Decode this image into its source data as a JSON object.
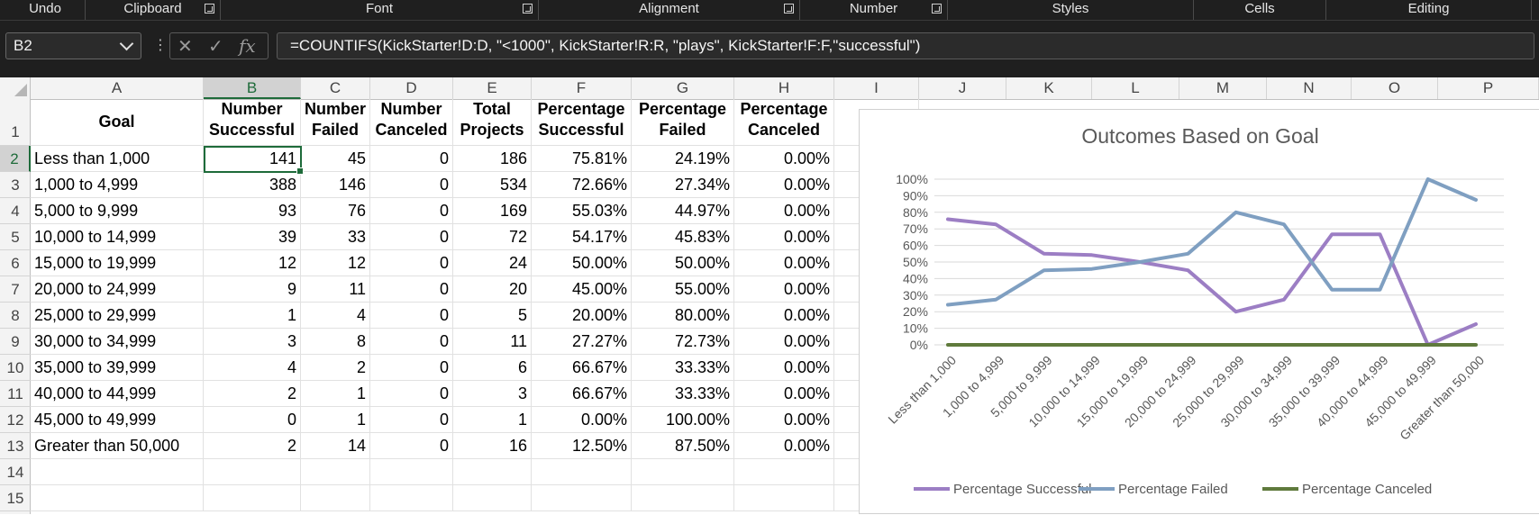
{
  "ribbon": {
    "groups": [
      {
        "label": "Undo",
        "launcher": false
      },
      {
        "label": "Clipboard",
        "launcher": true
      },
      {
        "label": "Font",
        "launcher": true
      },
      {
        "label": "Alignment",
        "launcher": true
      },
      {
        "label": "Number",
        "launcher": true
      },
      {
        "label": "Styles",
        "launcher": false
      },
      {
        "label": "Cells",
        "launcher": false
      },
      {
        "label": "Editing",
        "launcher": false
      }
    ]
  },
  "formula_bar": {
    "name_box": "B2",
    "formula": "=COUNTIFS(KickStarter!D:D, \"<1000\", KickStarter!R:R, \"plays\", KickStarter!F:F,\"successful\")",
    "cancel_icon": "close-icon",
    "enter_icon": "check-icon",
    "function_icon": "fx-icon"
  },
  "sheet": {
    "columns": [
      "A",
      "B",
      "C",
      "D",
      "E",
      "F",
      "G",
      "H",
      "I",
      "J",
      "K",
      "L",
      "M",
      "N",
      "O",
      "P"
    ],
    "rows": [
      "1",
      "2",
      "3",
      "4",
      "5",
      "6",
      "7",
      "8",
      "9",
      "10",
      "11",
      "12",
      "13",
      "14",
      "15"
    ],
    "selected_cell": "B2",
    "headers": [
      "Goal",
      "Number Successful",
      "Number Failed",
      "Number Canceled",
      "Total Projects",
      "Percentage Successful",
      "Percentage Failed",
      "Percentage Canceled"
    ],
    "data": [
      [
        "Less than 1,000",
        "141",
        "45",
        "0",
        "186",
        "75.81%",
        "24.19%",
        "0.00%"
      ],
      [
        "1,000 to 4,999",
        "388",
        "146",
        "0",
        "534",
        "72.66%",
        "27.34%",
        "0.00%"
      ],
      [
        "5,000 to 9,999",
        "93",
        "76",
        "0",
        "169",
        "55.03%",
        "44.97%",
        "0.00%"
      ],
      [
        "10,000 to 14,999",
        "39",
        "33",
        "0",
        "72",
        "54.17%",
        "45.83%",
        "0.00%"
      ],
      [
        "15,000 to 19,999",
        "12",
        "12",
        "0",
        "24",
        "50.00%",
        "50.00%",
        "0.00%"
      ],
      [
        "20,000 to 24,999",
        "9",
        "11",
        "0",
        "20",
        "45.00%",
        "55.00%",
        "0.00%"
      ],
      [
        "25,000 to 29,999",
        "1",
        "4",
        "0",
        "5",
        "20.00%",
        "80.00%",
        "0.00%"
      ],
      [
        "30,000 to 34,999",
        "3",
        "8",
        "0",
        "11",
        "27.27%",
        "72.73%",
        "0.00%"
      ],
      [
        "35,000 to 39,999",
        "4",
        "2",
        "0",
        "6",
        "66.67%",
        "33.33%",
        "0.00%"
      ],
      [
        "40,000 to 44,999",
        "2",
        "1",
        "0",
        "3",
        "66.67%",
        "33.33%",
        "0.00%"
      ],
      [
        "45,000 to 49,999",
        "0",
        "1",
        "0",
        "1",
        "0.00%",
        "100.00%",
        "0.00%"
      ],
      [
        "Greater than 50,000",
        "2",
        "14",
        "0",
        "16",
        "12.50%",
        "87.50%",
        "0.00%"
      ]
    ]
  },
  "colors": {
    "accent": "#1e6b3a",
    "successful": "#9c7ec4",
    "failed": "#7f9fc1",
    "canceled": "#5f7a3c",
    "chrome": "#1f1f1f"
  },
  "chart_data": {
    "type": "line",
    "title": "Outcomes Based on Goal",
    "xlabel": "",
    "ylabel": "",
    "ylim": [
      0,
      100
    ],
    "yticks": [
      "0%",
      "10%",
      "20%",
      "30%",
      "40%",
      "50%",
      "60%",
      "70%",
      "80%",
      "90%",
      "100%"
    ],
    "grid": true,
    "legend": "bottom",
    "categories": [
      "Less than 1,000",
      "1,000 to 4,999",
      "5,000 to 9,999",
      "10,000 to 14,999",
      "15,000 to 19,999",
      "20,000 to 24,999",
      "25,000 to 29,999",
      "30,000 to 34,999",
      "35,000 to 39,999",
      "40,000 to 44,999",
      "45,000 to 49,999",
      "Greater than 50,000"
    ],
    "series": [
      {
        "name": "Percentage Successful",
        "color": "#9c7ec4",
        "values": [
          75.81,
          72.66,
          55.03,
          54.17,
          50.0,
          45.0,
          20.0,
          27.27,
          66.67,
          66.67,
          0.0,
          12.5
        ]
      },
      {
        "name": "Percentage Failed",
        "color": "#7f9fc1",
        "values": [
          24.19,
          27.34,
          44.97,
          45.83,
          50.0,
          55.0,
          80.0,
          72.73,
          33.33,
          33.33,
          100.0,
          87.5
        ]
      },
      {
        "name": "Percentage Canceled",
        "color": "#5f7a3c",
        "values": [
          0,
          0,
          0,
          0,
          0,
          0,
          0,
          0,
          0,
          0,
          0,
          0
        ]
      }
    ]
  }
}
